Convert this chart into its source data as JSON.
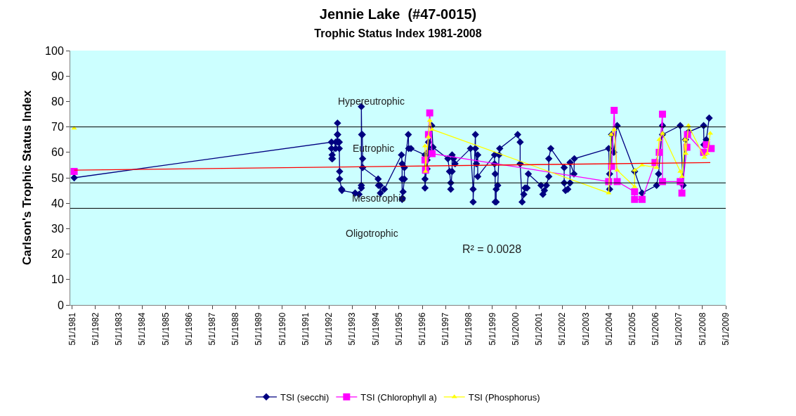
{
  "chart_data": {
    "type": "line",
    "title": "Jennie Lake  (#47-0015)",
    "subtitle": "Trophic Status Index 1981-2008",
    "ylabel": "Carlson's Trophic Status Index",
    "xlim": [
      "1981-04-01",
      "2009-05-01"
    ],
    "xticks": [
      {
        "value": "1981-05-01",
        "label": "5/1/1981"
      },
      {
        "value": "1982-05-01",
        "label": "5/1/1982"
      },
      {
        "value": "1983-05-01",
        "label": "5/1/1983"
      },
      {
        "value": "1984-05-01",
        "label": "5/1/1984"
      },
      {
        "value": "1985-05-01",
        "label": "5/1/1985"
      },
      {
        "value": "1986-05-01",
        "label": "5/1/1986"
      },
      {
        "value": "1987-05-01",
        "label": "5/1/1987"
      },
      {
        "value": "1988-05-01",
        "label": "5/1/1988"
      },
      {
        "value": "1989-05-01",
        "label": "5/1/1989"
      },
      {
        "value": "1990-05-01",
        "label": "5/1/1990"
      },
      {
        "value": "1991-05-01",
        "label": "5/1/1991"
      },
      {
        "value": "1992-05-01",
        "label": "5/1/1992"
      },
      {
        "value": "1993-05-01",
        "label": "5/1/1993"
      },
      {
        "value": "1994-05-01",
        "label": "5/1/1994"
      },
      {
        "value": "1995-05-01",
        "label": "5/1/1995"
      },
      {
        "value": "1996-05-01",
        "label": "5/1/1996"
      },
      {
        "value": "1997-05-01",
        "label": "5/1/1997"
      },
      {
        "value": "1998-05-01",
        "label": "5/1/1998"
      },
      {
        "value": "1999-05-01",
        "label": "5/1/1999"
      },
      {
        "value": "2000-05-01",
        "label": "5/1/2000"
      },
      {
        "value": "2001-05-01",
        "label": "5/1/2001"
      },
      {
        "value": "2002-05-01",
        "label": "5/1/2002"
      },
      {
        "value": "2003-05-01",
        "label": "5/1/2003"
      },
      {
        "value": "2004-05-01",
        "label": "5/1/2004"
      },
      {
        "value": "2005-05-01",
        "label": "5/1/2005"
      },
      {
        "value": "2006-05-01",
        "label": "5/1/2006"
      },
      {
        "value": "2007-05-01",
        "label": "5/1/2007"
      },
      {
        "value": "2008-05-01",
        "label": "5/1/2008"
      },
      {
        "value": "2009-05-01",
        "label": "5/1/2009"
      }
    ],
    "ylim": [
      0,
      100
    ],
    "yticks": [
      0,
      10,
      20,
      30,
      40,
      50,
      60,
      70,
      80,
      90,
      100
    ],
    "grid": false,
    "legend": "bottom",
    "line_style": "solid",
    "series": [
      {
        "name": "TSI (secchi)",
        "color": "#000080",
        "marker": "diamond",
        "x": [
          "1981-06-01",
          "1992-06-10",
          "1992-06-10",
          "1992-06-15",
          "1992-06-20",
          "1992-06-25",
          "1992-08-15",
          "1992-08-15",
          "1992-09-10",
          "1992-09-12",
          "1992-09-15",
          "1992-09-20",
          "1992-10-10",
          "1992-10-10",
          "1992-10-15",
          "1992-10-15",
          "1992-11-15",
          "1992-11-20",
          "1993-06-15",
          "1993-08-15",
          "1993-09-20",
          "1993-09-20",
          "1993-09-20",
          "1993-09-25",
          "1993-10-05",
          "1993-10-10",
          "1993-10-10",
          "1994-06-10",
          "1994-06-15",
          "1994-07-10",
          "1994-07-15",
          "1994-09-15",
          "1995-06-10",
          "1995-06-20",
          "1995-06-20",
          "1995-06-20",
          "1995-06-25",
          "1995-07-05",
          "1995-07-25",
          "1995-07-25",
          "1995-09-25",
          "1995-10-01",
          "1995-11-05",
          "1996-06-12",
          "1996-06-12",
          "1996-06-12",
          "1996-07-15",
          "1996-07-15",
          "1996-07-20",
          "1996-08-05",
          "1996-08-15",
          "1996-09-25",
          "1996-10-15",
          "1997-06-05",
          "1997-07-01",
          "1997-07-20",
          "1997-07-20",
          "1997-08-10",
          "1997-08-10",
          "1997-09-01",
          "1997-09-25",
          "1998-05-25",
          "1998-07-05",
          "1998-07-05",
          "1998-08-10",
          "1998-08-10",
          "1998-08-25",
          "1998-09-15",
          "1998-09-15",
          "1999-06-05",
          "1999-06-05",
          "1999-06-15",
          "1999-06-15",
          "1999-07-01",
          "1999-07-01",
          "1999-07-25",
          "1999-08-15",
          "1999-08-25",
          "2000-06-01",
          "2000-07-10",
          "2000-07-10",
          "2000-08-10",
          "2000-09-05",
          "2000-09-25",
          "2000-10-25",
          "2000-11-15",
          "2001-06-01",
          "2001-07-01",
          "2001-07-25",
          "2001-08-25",
          "2001-10-01",
          "2001-10-01",
          "2001-11-01",
          "2002-05-30",
          "2002-05-30",
          "2002-06-20",
          "2002-07-25",
          "2002-08-30",
          "2002-08-30",
          "2002-10-30",
          "2002-11-05",
          "2004-04-25",
          "2004-05-10",
          "2004-05-10",
          "2004-06-10",
          "2004-07-15",
          "2004-09-05",
          "2005-06-05",
          "2005-09-30",
          "2006-05-15",
          "2006-06-15",
          "2006-08-15",
          "2006-08-15",
          "2007-05-20",
          "2007-07-05",
          "2007-08-10",
          "2007-09-25",
          "2008-05-20",
          "2008-05-25",
          "2008-07-01",
          "2008-08-15"
        ],
        "values": [
          50,
          64,
          61.5,
          57.5,
          59,
          57.5,
          64,
          61.5,
          67,
          71.5,
          67,
          64,
          64,
          61.5,
          52.5,
          49.5,
          45.5,
          45,
          44,
          43.5,
          46,
          47,
          78,
          67,
          67,
          57.5,
          54,
          49.5,
          47,
          47,
          44,
          45.5,
          59,
          55.5,
          49.5,
          41.5,
          42,
          44.5,
          49.5,
          54,
          67,
          61.5,
          61.5,
          59,
          49.5,
          46,
          57,
          53.5,
          58.5,
          64,
          60.5,
          70.5,
          62,
          57.5,
          52.5,
          48,
          45.5,
          52.5,
          59,
          57.5,
          55.5,
          61.5,
          45.5,
          40.5,
          67,
          61.5,
          55.5,
          59,
          50.5,
          59,
          55.5,
          51.5,
          40.5,
          40.5,
          45.5,
          47,
          59,
          61.5,
          67,
          64,
          55.5,
          40.5,
          43.5,
          46,
          46,
          51.5,
          47,
          43.5,
          45,
          47,
          50.5,
          57.5,
          61.5,
          54,
          48,
          45,
          45.5,
          48,
          56,
          51.5,
          57.5,
          61.5,
          51.5,
          45.5,
          67,
          60,
          70.5,
          52.5,
          44,
          47,
          51.5,
          70.5,
          67,
          70.5,
          47,
          65,
          68,
          70.5,
          63,
          65,
          73.5
        ]
      },
      {
        "name": "TSI (Chlorophyll a)",
        "color": "#ff00ff",
        "marker": "square",
        "x": [
          "1981-06-01",
          "1990-01-01",
          "1996-06-12",
          "1996-06-20",
          "1996-08-05",
          "1996-08-25",
          "1996-10-01",
          "2004-04-25",
          "2004-06-10",
          "2004-07-20",
          "2004-09-05",
          "2005-06-05",
          "2005-06-05",
          "2005-09-30",
          "2006-04-20",
          "2006-06-25",
          "2006-08-15",
          "2006-08-15",
          "2007-05-20",
          "2007-06-15",
          "2007-09-01",
          "2007-09-10",
          "2008-05-20",
          "2008-07-01",
          "2008-09-15"
        ],
        "values": [
          52.5,
          null,
          57,
          53,
          67,
          75.5,
          59.5,
          48.5,
          54.5,
          76.5,
          48.5,
          44.5,
          41.5,
          41.5,
          56,
          60,
          75,
          48.5,
          48.5,
          44,
          62,
          67,
          60,
          63,
          61.5
        ]
      },
      {
        "name": "TSI (Phosphorus)",
        "color": "#ffff00",
        "marker": "triangle",
        "x": [
          "1981-06-01",
          "1990-01-01",
          "1996-06-12",
          "1996-06-20",
          "1996-08-05",
          "1996-08-25",
          "1996-10-01",
          "2004-04-25",
          "2004-06-01",
          "2004-07-20",
          "2004-09-05",
          "2005-06-05",
          "2005-06-05",
          "2005-09-30",
          "2006-05-15",
          "2006-06-25",
          "2006-08-15",
          "2007-05-20",
          "2007-06-15",
          "2007-08-01",
          "2007-08-15",
          "2007-09-25",
          "2008-06-01",
          "2008-07-15",
          "2008-09-01"
        ],
        "values": [
          69.5,
          null,
          62.5,
          52.5,
          66,
          72.5,
          69,
          44,
          67,
          69,
          53,
          46.5,
          53,
          55,
          54,
          65,
          67.5,
          52.5,
          50.5,
          65,
          59.5,
          70.5,
          58,
          59.5,
          67.5
        ]
      },
      {
        "type": "line",
        "color": "#ff0000",
        "marker": "none",
        "x": [
          "1981-06-01",
          "2008-09-01"
        ],
        "values": [
          53,
          56
        ]
      }
    ],
    "ref_lines": [
      {
        "axis": "y",
        "value": 70,
        "color": "#000000"
      },
      {
        "axis": "y",
        "value": 48,
        "color": "#000000"
      },
      {
        "axis": "y",
        "value": 38,
        "color": "#000000"
      }
    ],
    "annotations": [
      "Hypereutrophic",
      "Eutrophic",
      "Mesotrophic",
      "Oligotrophic",
      "R² = 0.0028"
    ]
  }
}
